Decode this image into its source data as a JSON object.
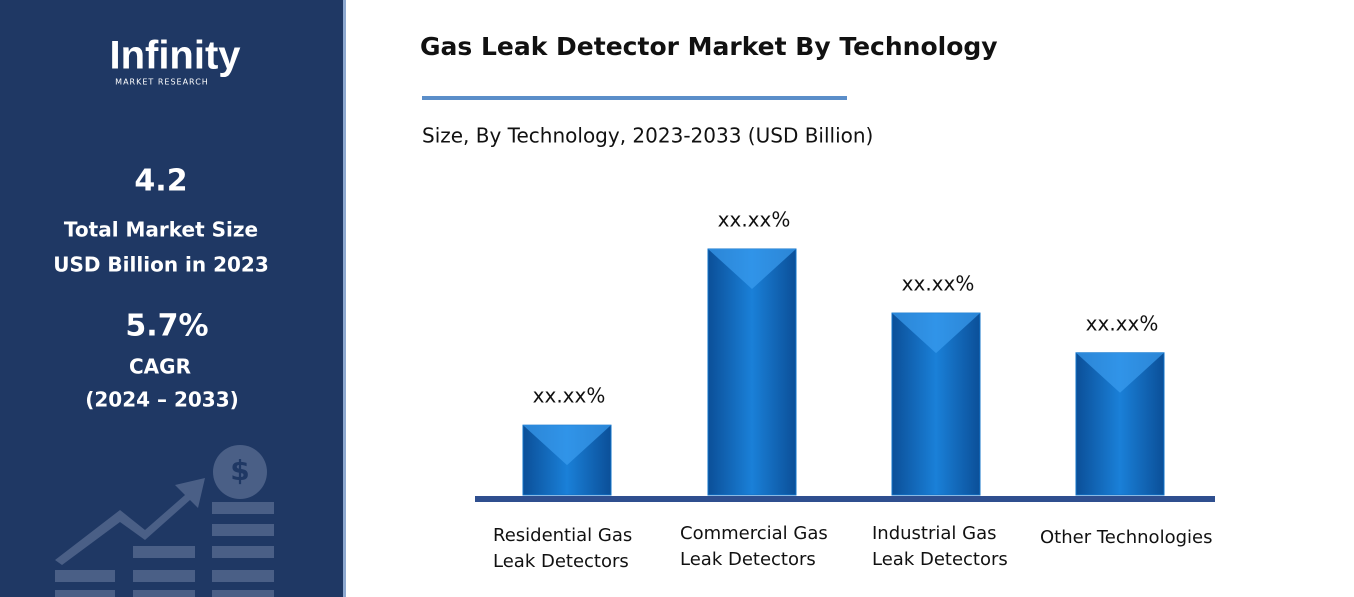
{
  "brand": {
    "name": "Infinity",
    "tagline": "MARKET RESEARCH"
  },
  "stats": {
    "market_size": "4.2",
    "market_size_label_1": "Total Market Size",
    "market_size_label_2": "USD Billion in 2023",
    "cagr": "5.7%",
    "cagr_label": "CAGR",
    "cagr_period": "(2024 – 2033)"
  },
  "chart_data": {
    "type": "bar",
    "title": "Gas Leak Detector Market By Technology",
    "subtitle": "Size, By Technology, 2023-2033 (USD Billion)",
    "categories": [
      "Residential Gas Leak Detectors",
      "Commercial Gas Leak Detectors",
      "Industrial Gas Leak Detectors",
      "Other Technologies"
    ],
    "values": [
      10.9,
      38.4,
      28.4,
      22.2
    ],
    "value_labels": [
      "xx.xx%",
      "xx.xx%",
      "xx.xx%",
      "xx.xx%"
    ],
    "color": "#1273c9"
  }
}
